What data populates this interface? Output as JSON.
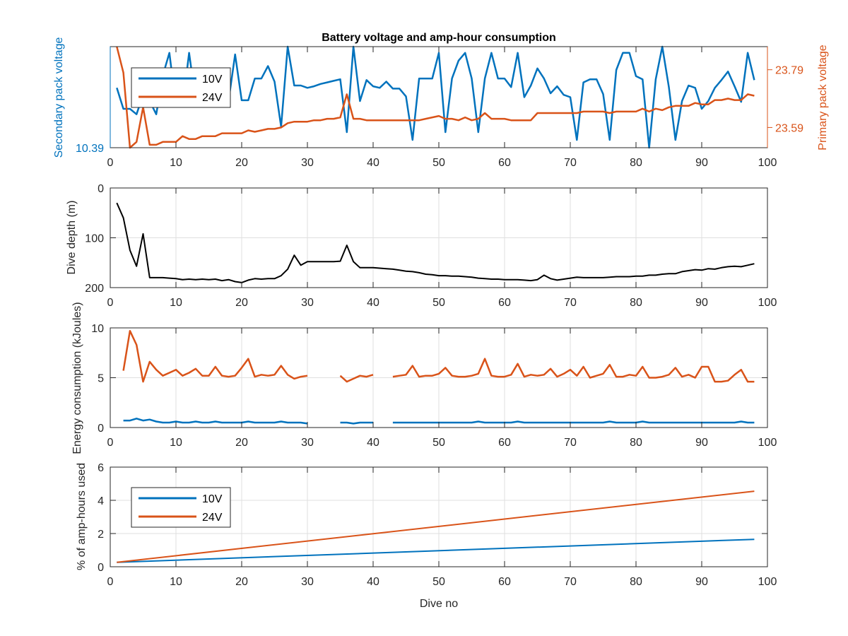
{
  "colors": {
    "series_10v": "#0072BD",
    "series_24v": "#D95319",
    "depth": "#000000",
    "axis": "#262626",
    "grid": "#dfdfdf"
  },
  "chart_data": [
    {
      "type": "line",
      "title": "Battery voltage and amp-hour consumption",
      "xlabel": "",
      "xlim": [
        0,
        100
      ],
      "x_ticks": [
        "0",
        "10",
        "20",
        "30",
        "40",
        "50",
        "60",
        "70",
        "80",
        "90",
        "100"
      ],
      "grid": false,
      "legend": {
        "placement": "top-left",
        "entries": [
          "10V",
          "24V"
        ]
      },
      "ylabel_left": "Secondary pack voltage",
      "ylim_left": [
        10.39,
        10.52
      ],
      "y_ticks_left": [
        "10.39"
      ],
      "ylabel_right": "Primary pack voltage",
      "ylim_right": [
        23.52,
        23.87
      ],
      "y_ticks_right": [
        "23.59",
        "23.79"
      ],
      "series": [
        {
          "name": "10V",
          "axis": "left",
          "color": "#0072BD",
          "x": [
            1,
            2,
            3,
            4,
            5,
            6,
            7,
            8,
            9,
            10,
            11,
            12,
            13,
            14,
            15,
            16,
            17,
            18,
            19,
            20,
            21,
            22,
            23,
            24,
            25,
            26,
            27,
            28,
            29,
            30,
            31,
            32,
            33,
            34,
            35,
            36,
            37,
            38,
            39,
            40,
            41,
            42,
            43,
            44,
            45,
            46,
            47,
            48,
            49,
            50,
            51,
            52,
            53,
            54,
            55,
            56,
            57,
            58,
            59,
            60,
            61,
            62,
            63,
            64,
            65,
            66,
            67,
            68,
            69,
            70,
            71,
            72,
            73,
            74,
            75,
            76,
            77,
            78,
            79,
            80,
            81,
            82,
            83,
            84,
            85,
            86,
            87,
            88,
            89,
            90,
            91,
            92,
            93,
            94,
            95,
            96,
            97,
            98
          ],
          "y": [
            10.467,
            10.44,
            10.44,
            10.433,
            10.458,
            10.45,
            10.433,
            10.483,
            10.512,
            10.443,
            10.443,
            10.512,
            10.45,
            10.45,
            10.45,
            10.45,
            10.45,
            10.45,
            10.51,
            10.451,
            10.451,
            10.479,
            10.479,
            10.495,
            10.475,
            10.417,
            10.52,
            10.47,
            10.47,
            10.467,
            10.469,
            10.472,
            10.474,
            10.476,
            10.478,
            10.41,
            10.52,
            10.45,
            10.477,
            10.469,
            10.467,
            10.475,
            10.466,
            10.466,
            10.456,
            10.4,
            10.479,
            10.479,
            10.479,
            10.512,
            10.41,
            10.479,
            10.502,
            10.512,
            10.479,
            10.41,
            10.479,
            10.512,
            10.479,
            10.479,
            10.468,
            10.512,
            10.455,
            10.47,
            10.492,
            10.479,
            10.46,
            10.469,
            10.458,
            10.455,
            10.4,
            10.474,
            10.478,
            10.478,
            10.459,
            10.4,
            10.49,
            10.512,
            10.512,
            10.482,
            10.478,
            10.39,
            10.478,
            10.52,
            10.468,
            10.4,
            10.45,
            10.47,
            10.467,
            10.44,
            10.45,
            10.467,
            10.477,
            10.488,
            10.469,
            10.449,
            10.512,
            10.477
          ]
        },
        {
          "name": "24V",
          "axis": "right",
          "color": "#D95319",
          "x": [
            1,
            2,
            3,
            4,
            5,
            6,
            7,
            8,
            9,
            10,
            11,
            12,
            13,
            14,
            15,
            16,
            17,
            18,
            19,
            20,
            21,
            22,
            23,
            24,
            25,
            26,
            27,
            28,
            29,
            30,
            31,
            32,
            33,
            34,
            35,
            36,
            37,
            38,
            39,
            40,
            41,
            42,
            43,
            44,
            45,
            46,
            47,
            48,
            49,
            50,
            51,
            52,
            53,
            54,
            55,
            56,
            57,
            58,
            59,
            60,
            61,
            62,
            63,
            64,
            65,
            66,
            67,
            68,
            69,
            70,
            71,
            72,
            73,
            74,
            75,
            76,
            77,
            78,
            79,
            80,
            81,
            82,
            83,
            84,
            85,
            86,
            87,
            88,
            89,
            90,
            91,
            92,
            93,
            94,
            95,
            96,
            97,
            98
          ],
          "y": [
            23.87,
            23.78,
            23.52,
            23.54,
            23.66,
            23.53,
            23.53,
            23.54,
            23.54,
            23.54,
            23.56,
            23.55,
            23.55,
            23.56,
            23.56,
            23.56,
            23.57,
            23.57,
            23.57,
            23.57,
            23.58,
            23.575,
            23.58,
            23.585,
            23.585,
            23.59,
            23.605,
            23.61,
            23.61,
            23.61,
            23.615,
            23.615,
            23.62,
            23.62,
            23.625,
            23.705,
            23.62,
            23.62,
            23.615,
            23.615,
            23.615,
            23.615,
            23.615,
            23.615,
            23.615,
            23.615,
            23.615,
            23.62,
            23.625,
            23.63,
            23.62,
            23.62,
            23.615,
            23.625,
            23.615,
            23.62,
            23.64,
            23.62,
            23.62,
            23.62,
            23.615,
            23.615,
            23.615,
            23.615,
            23.64,
            23.64,
            23.64,
            23.64,
            23.64,
            23.64,
            23.64,
            23.645,
            23.645,
            23.645,
            23.645,
            23.64,
            23.645,
            23.645,
            23.645,
            23.645,
            23.655,
            23.645,
            23.655,
            23.65,
            23.66,
            23.665,
            23.665,
            23.665,
            23.675,
            23.67,
            23.67,
            23.685,
            23.685,
            23.69,
            23.685,
            23.685,
            23.705,
            23.7
          ]
        }
      ]
    },
    {
      "type": "line",
      "xlim": [
        0,
        100
      ],
      "x_ticks": [
        "0",
        "10",
        "20",
        "30",
        "40",
        "50",
        "60",
        "70",
        "80",
        "90",
        "100"
      ],
      "ylabel": "Dive depth (m)",
      "ylim": [
        0,
        200
      ],
      "y_reversed": true,
      "y_ticks": [
        "0",
        "100",
        "200"
      ],
      "grid": true,
      "series": [
        {
          "color": "#000000",
          "x": [
            1,
            2,
            3,
            4,
            5,
            6,
            7,
            8,
            9,
            10,
            11,
            12,
            13,
            14,
            15,
            16,
            17,
            18,
            19,
            20,
            21,
            22,
            23,
            24,
            25,
            26,
            27,
            28,
            29,
            30,
            31,
            32,
            33,
            34,
            35,
            36,
            37,
            38,
            39,
            40,
            41,
            42,
            43,
            44,
            45,
            46,
            47,
            48,
            49,
            50,
            51,
            52,
            53,
            54,
            55,
            56,
            57,
            58,
            59,
            60,
            61,
            62,
            63,
            64,
            65,
            66,
            67,
            68,
            69,
            70,
            71,
            72,
            73,
            74,
            75,
            76,
            77,
            78,
            79,
            80,
            81,
            82,
            83,
            84,
            85,
            86,
            87,
            88,
            89,
            90,
            91,
            92,
            93,
            94,
            95,
            96,
            97,
            98
          ],
          "y": [
            30,
            60,
            125,
            157,
            92,
            180,
            180,
            180,
            181,
            182,
            184,
            183,
            184,
            183,
            184,
            183,
            186,
            184,
            188,
            190,
            185,
            182,
            183,
            182,
            182,
            176,
            163,
            135,
            155,
            148,
            148,
            148,
            148,
            148,
            147,
            115,
            148,
            160,
            160,
            160,
            161,
            162,
            163,
            165,
            167,
            168,
            170,
            173,
            174,
            176,
            176,
            177,
            177,
            178,
            179,
            181,
            182,
            183,
            183,
            184,
            184,
            184,
            185,
            186,
            184,
            175,
            182,
            185,
            183,
            181,
            179,
            180,
            180,
            180,
            180,
            179,
            178,
            178,
            178,
            177,
            177,
            175,
            175,
            173,
            172,
            172,
            168,
            166,
            164,
            165,
            162,
            163,
            160,
            158,
            157,
            158,
            155,
            152
          ]
        }
      ]
    },
    {
      "type": "line",
      "xlim": [
        0,
        100
      ],
      "x_ticks": [
        "0",
        "10",
        "20",
        "30",
        "40",
        "50",
        "60",
        "70",
        "80",
        "90",
        "100"
      ],
      "ylabel": "Energy consumption (kJoules)",
      "ylim": [
        0,
        10
      ],
      "y_ticks": [
        "0",
        "5",
        "10"
      ],
      "grid": true,
      "series": [
        {
          "name": "24V",
          "color": "#D95319",
          "x": [
            2,
            3,
            4,
            5,
            6,
            7,
            8,
            9,
            10,
            11,
            12,
            13,
            14,
            15,
            16,
            17,
            18,
            19,
            20,
            21,
            22,
            23,
            24,
            25,
            26,
            27,
            28,
            29,
            30,
            null,
            35,
            36,
            37,
            38,
            39,
            40,
            null,
            43,
            44,
            45,
            46,
            47,
            48,
            49,
            50,
            51,
            52,
            53,
            54,
            55,
            56,
            57,
            58,
            59,
            60,
            61,
            62,
            63,
            64,
            65,
            66,
            67,
            68,
            69,
            70,
            71,
            72,
            73,
            74,
            75,
            76,
            77,
            78,
            79,
            80,
            81,
            82,
            83,
            84,
            85,
            86,
            87,
            88,
            89,
            90,
            91,
            92,
            93,
            94,
            95,
            96,
            97,
            98
          ],
          "y": [
            5.7,
            9.7,
            8.3,
            4.6,
            6.6,
            5.8,
            5.2,
            5.5,
            5.8,
            5.2,
            5.5,
            5.9,
            5.2,
            5.2,
            6.1,
            5.2,
            5.1,
            5.2,
            6.0,
            6.9,
            5.1,
            5.3,
            5.2,
            5.3,
            6.2,
            5.3,
            4.9,
            5.1,
            5.2,
            null,
            5.2,
            4.6,
            4.9,
            5.2,
            5.1,
            5.3,
            null,
            5.1,
            5.2,
            5.3,
            6.2,
            5.1,
            5.2,
            5.2,
            5.4,
            6.0,
            5.2,
            5.1,
            5.1,
            5.2,
            5.4,
            6.9,
            5.2,
            5.1,
            5.1,
            5.3,
            6.4,
            5.1,
            5.3,
            5.2,
            5.3,
            5.9,
            5.1,
            5.4,
            5.8,
            5.2,
            6.1,
            5.0,
            5.2,
            5.4,
            6.3,
            5.1,
            5.1,
            5.3,
            5.2,
            6.1,
            5.0,
            5.0,
            5.1,
            5.3,
            6.0,
            5.1,
            5.3,
            5.0,
            6.1,
            6.1,
            4.6,
            4.6,
            4.7,
            5.3,
            5.8,
            4.6,
            4.6
          ]
        },
        {
          "name": "10V",
          "color": "#0072BD",
          "x": [
            2,
            3,
            4,
            5,
            6,
            7,
            8,
            9,
            10,
            11,
            12,
            13,
            14,
            15,
            16,
            17,
            18,
            19,
            20,
            21,
            22,
            23,
            24,
            25,
            26,
            27,
            28,
            29,
            30,
            null,
            35,
            36,
            37,
            38,
            39,
            40,
            null,
            43,
            44,
            45,
            46,
            47,
            48,
            49,
            50,
            51,
            52,
            53,
            54,
            55,
            56,
            57,
            58,
            59,
            60,
            61,
            62,
            63,
            64,
            65,
            66,
            67,
            68,
            69,
            70,
            71,
            72,
            73,
            74,
            75,
            76,
            77,
            78,
            79,
            80,
            81,
            82,
            83,
            84,
            85,
            86,
            87,
            88,
            89,
            90,
            91,
            92,
            93,
            94,
            95,
            96,
            97,
            98
          ],
          "y": [
            0.7,
            0.7,
            0.9,
            0.7,
            0.8,
            0.6,
            0.5,
            0.5,
            0.6,
            0.5,
            0.5,
            0.6,
            0.5,
            0.5,
            0.6,
            0.5,
            0.5,
            0.5,
            0.5,
            0.6,
            0.5,
            0.5,
            0.5,
            0.5,
            0.6,
            0.5,
            0.5,
            0.5,
            0.4,
            null,
            0.5,
            0.5,
            0.4,
            0.5,
            0.5,
            0.5,
            null,
            0.5,
            0.5,
            0.5,
            0.5,
            0.5,
            0.5,
            0.5,
            0.5,
            0.5,
            0.5,
            0.5,
            0.5,
            0.5,
            0.6,
            0.5,
            0.5,
            0.5,
            0.5,
            0.5,
            0.6,
            0.5,
            0.5,
            0.5,
            0.5,
            0.5,
            0.5,
            0.5,
            0.5,
            0.5,
            0.5,
            0.5,
            0.5,
            0.5,
            0.6,
            0.5,
            0.5,
            0.5,
            0.5,
            0.6,
            0.5,
            0.5,
            0.5,
            0.5,
            0.5,
            0.5,
            0.5,
            0.5,
            0.5,
            0.5,
            0.5,
            0.5,
            0.5,
            0.5,
            0.6,
            0.5,
            0.5
          ]
        }
      ]
    },
    {
      "type": "line",
      "xlim": [
        0,
        100
      ],
      "x_ticks": [
        "0",
        "10",
        "20",
        "30",
        "40",
        "50",
        "60",
        "70",
        "80",
        "90",
        "100"
      ],
      "xlabel": "Dive no",
      "ylabel": "% of amp-hours used",
      "ylim": [
        0,
        6
      ],
      "y_ticks": [
        "0",
        "2",
        "4",
        "6"
      ],
      "grid": true,
      "legend": {
        "placement": "top-left",
        "entries": [
          "10V",
          "24V"
        ]
      },
      "series": [
        {
          "name": "10V",
          "color": "#0072BD",
          "x": [
            1,
            98
          ],
          "y": [
            0.27,
            1.65
          ]
        },
        {
          "name": "24V",
          "color": "#D95319",
          "x": [
            1,
            98
          ],
          "y": [
            0.27,
            4.55
          ]
        }
      ]
    }
  ]
}
